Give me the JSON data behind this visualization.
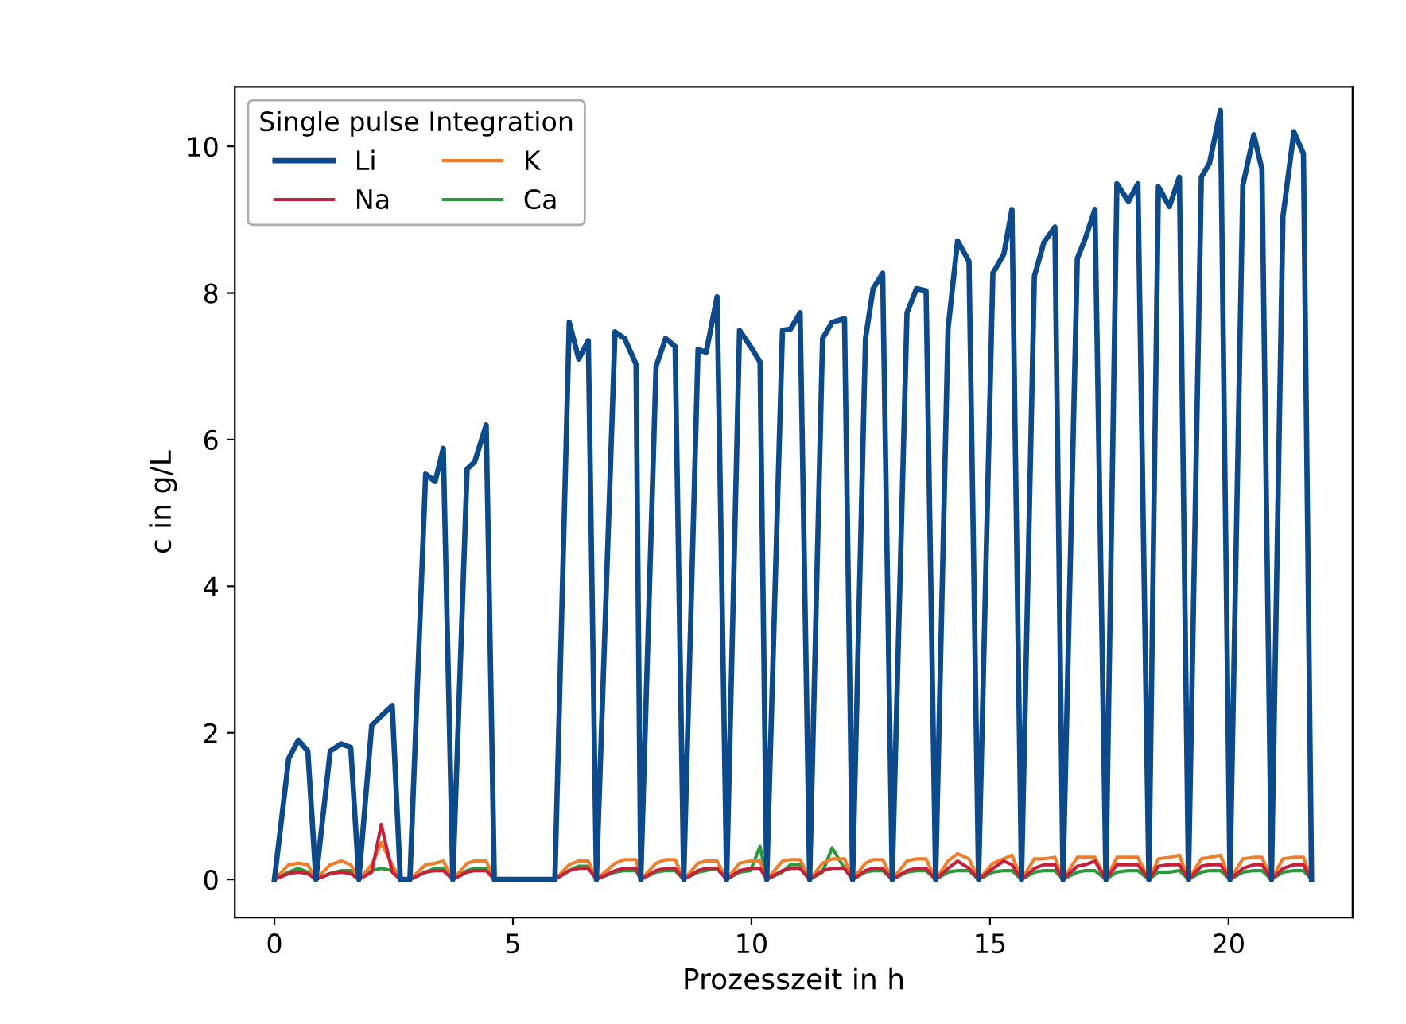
{
  "chart_data": {
    "type": "line",
    "xlabel": "Prozesszeit in h",
    "ylabel": "c in g/L",
    "legend_title": "Single pulse Integration",
    "legend": "top left",
    "grid": false,
    "marker": "none",
    "line_style": "solid",
    "xlim": [
      -0.83,
      22.6
    ],
    "ylim": [
      -0.52,
      10.81
    ],
    "xticks": [
      0,
      5,
      10,
      15,
      20
    ],
    "yticks": [
      0,
      2,
      4,
      6,
      8,
      10
    ],
    "x": [
      0,
      0.3,
      0.5,
      0.7,
      0.87,
      1.17,
      1.4,
      1.6,
      1.77,
      2.04,
      2.24,
      2.47,
      2.64,
      2.84,
      3.17,
      3.37,
      3.54,
      3.74,
      4.04,
      4.2,
      4.44,
      4.61,
      5.88,
      6.18,
      6.38,
      6.58,
      6.75,
      7.14,
      7.34,
      7.58,
      7.68,
      8.0,
      8.2,
      8.4,
      8.58,
      8.88,
      9.05,
      9.28,
      9.48,
      9.75,
      9.98,
      10.18,
      10.32,
      10.65,
      10.82,
      11.02,
      11.22,
      11.49,
      11.69,
      11.95,
      12.12,
      12.39,
      12.55,
      12.75,
      12.95,
      13.26,
      13.46,
      13.66,
      13.86,
      14.12,
      14.32,
      14.56,
      14.76,
      15.06,
      15.29,
      15.46,
      15.66,
      15.93,
      16.13,
      16.36,
      16.53,
      16.83,
      17.0,
      17.2,
      17.43,
      17.66,
      17.9,
      18.1,
      18.33,
      18.53,
      18.76,
      18.97,
      19.16,
      19.43,
      19.6,
      19.83,
      20.03,
      20.3,
      20.53,
      20.7,
      20.9,
      21.14,
      21.37,
      21.57,
      21.74
    ],
    "series": [
      {
        "name": "Li",
        "color": "#0d4a8c",
        "values": [
          0,
          1.65,
          1.9,
          1.75,
          0,
          1.75,
          1.85,
          1.8,
          0,
          2.1,
          2.23,
          2.37,
          0,
          0,
          5.53,
          5.43,
          5.88,
          0,
          5.6,
          5.7,
          6.2,
          0,
          0,
          7.6,
          7.1,
          7.35,
          0,
          7.47,
          7.38,
          7.03,
          0,
          7.0,
          7.38,
          7.27,
          0,
          7.23,
          7.19,
          7.95,
          0,
          7.49,
          7.27,
          7.06,
          0,
          7.49,
          7.51,
          7.73,
          0,
          7.38,
          7.6,
          7.65,
          0,
          7.38,
          8.06,
          8.27,
          0,
          7.73,
          8.06,
          8.03,
          0,
          7.51,
          8.71,
          8.43,
          0,
          8.27,
          8.53,
          9.14,
          0,
          8.23,
          8.69,
          8.9,
          0,
          8.47,
          8.75,
          9.14,
          0,
          9.49,
          9.25,
          9.49,
          0,
          9.45,
          9.18,
          9.58,
          0,
          9.58,
          9.77,
          10.49,
          0,
          9.47,
          10.16,
          9.69,
          0,
          9.04,
          10.2,
          9.9,
          0
        ]
      },
      {
        "name": "Na",
        "color": "#c8203c",
        "values": [
          0,
          0.08,
          0.1,
          0.08,
          0,
          0.08,
          0.1,
          0.08,
          0,
          0.1,
          0.75,
          0.1,
          0,
          0,
          0.1,
          0.12,
          0.12,
          0,
          0.1,
          0.12,
          0.12,
          0,
          0,
          0.12,
          0.15,
          0.15,
          0,
          0.12,
          0.15,
          0.15,
          0,
          0.12,
          0.15,
          0.15,
          0,
          0.12,
          0.15,
          0.15,
          0,
          0.12,
          0.15,
          0.15,
          0,
          0.12,
          0.15,
          0.15,
          0,
          0.12,
          0.15,
          0.15,
          0,
          0.12,
          0.15,
          0.15,
          0,
          0.12,
          0.15,
          0.15,
          0,
          0.15,
          0.25,
          0.15,
          0,
          0.15,
          0.25,
          0.2,
          0,
          0.15,
          0.2,
          0.2,
          0,
          0.18,
          0.2,
          0.25,
          0,
          0.2,
          0.2,
          0.2,
          0,
          0.18,
          0.2,
          0.2,
          0,
          0.18,
          0.2,
          0.2,
          0,
          0.15,
          0.2,
          0.2,
          0,
          0.15,
          0.2,
          0.2,
          0
        ]
      },
      {
        "name": "K",
        "color": "#f07d2a",
        "values": [
          0,
          0.2,
          0.22,
          0.2,
          0,
          0.2,
          0.25,
          0.2,
          0,
          0.2,
          0.5,
          0.2,
          0,
          0,
          0.2,
          0.22,
          0.25,
          0,
          0.22,
          0.25,
          0.25,
          0,
          0,
          0.2,
          0.25,
          0.25,
          0,
          0.22,
          0.27,
          0.27,
          0,
          0.22,
          0.27,
          0.27,
          0,
          0.22,
          0.25,
          0.25,
          0,
          0.22,
          0.25,
          0.25,
          0,
          0.25,
          0.27,
          0.27,
          0,
          0.22,
          0.28,
          0.28,
          0,
          0.22,
          0.27,
          0.27,
          0,
          0.25,
          0.28,
          0.28,
          0,
          0.25,
          0.35,
          0.28,
          0,
          0.22,
          0.28,
          0.33,
          0,
          0.28,
          0.28,
          0.3,
          0,
          0.3,
          0.3,
          0.3,
          0,
          0.3,
          0.3,
          0.3,
          0,
          0.28,
          0.3,
          0.33,
          0,
          0.28,
          0.3,
          0.33,
          0,
          0.28,
          0.3,
          0.3,
          0,
          0.28,
          0.3,
          0.3,
          0
        ]
      },
      {
        "name": "Ca",
        "color": "#2a9a3a",
        "values": [
          0,
          0.1,
          0.15,
          0.1,
          0,
          0.08,
          0.12,
          0.12,
          0,
          0.12,
          0.15,
          0.12,
          0,
          0,
          0.1,
          0.15,
          0.15,
          0,
          0.12,
          0.15,
          0.15,
          0,
          0,
          0.12,
          0.18,
          0.18,
          0,
          0.1,
          0.12,
          0.12,
          0,
          0.1,
          0.12,
          0.12,
          0,
          0.1,
          0.12,
          0.15,
          0,
          0.1,
          0.12,
          0.45,
          0,
          0.1,
          0.2,
          0.2,
          0,
          0.1,
          0.43,
          0.15,
          0,
          0.1,
          0.12,
          0.12,
          0,
          0.1,
          0.12,
          0.12,
          0,
          0.1,
          0.12,
          0.12,
          0,
          0.1,
          0.12,
          0.12,
          0,
          0.1,
          0.12,
          0.12,
          0,
          0.1,
          0.12,
          0.12,
          0,
          0.1,
          0.12,
          0.12,
          0,
          0.1,
          0.1,
          0.12,
          0,
          0.1,
          0.12,
          0.12,
          0,
          0.1,
          0.12,
          0.12,
          0,
          0.1,
          0.12,
          0.12,
          0
        ]
      }
    ]
  }
}
